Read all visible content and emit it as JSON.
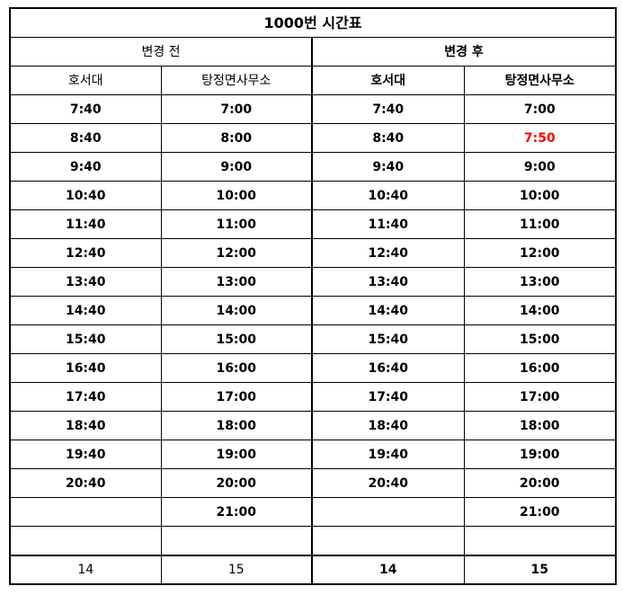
{
  "title": "1000번 시간표",
  "before": {
    "label": "변경 전",
    "col1": "호서대",
    "col2": "탕정면사무소",
    "hoseo": [
      "7:40",
      "8:40",
      "9:40",
      "10:40",
      "11:40",
      "12:40",
      "13:40",
      "14:40",
      "15:40",
      "16:40",
      "17:40",
      "18:40",
      "19:40",
      "20:40",
      "",
      ""
    ],
    "tangjeong": [
      "7:00",
      "8:00",
      "9:00",
      "10:00",
      "11:00",
      "12:00",
      "13:00",
      "14:00",
      "15:00",
      "16:00",
      "17:00",
      "18:00",
      "19:00",
      "20:00",
      "21:00",
      ""
    ],
    "total_hoseo": "14",
    "total_tangjeong": "15"
  },
  "after": {
    "label": "변경 후",
    "col1": "호서대",
    "col2": "탕정면사무소",
    "hoseo": [
      "7:40",
      "8:40",
      "9:40",
      "10:40",
      "11:40",
      "12:40",
      "13:40",
      "14:40",
      "15:40",
      "16:40",
      "17:40",
      "18:40",
      "19:40",
      "20:40",
      "",
      ""
    ],
    "tangjeong": [
      "7:00",
      "7:50",
      "9:00",
      "10:00",
      "11:00",
      "12:00",
      "13:00",
      "14:00",
      "15:00",
      "16:00",
      "17:00",
      "18:00",
      "19:00",
      "20:00",
      "21:00",
      ""
    ],
    "total_hoseo": "14",
    "total_tangjeong": "15"
  },
  "highlight_color": "#ff0000",
  "highlighted_cell": "after.tangjeong.1"
}
